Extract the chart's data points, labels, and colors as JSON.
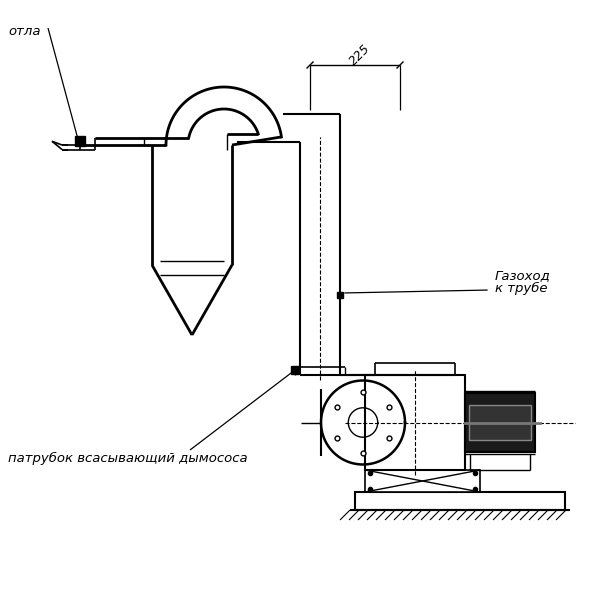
{
  "bg_color": "#ffffff",
  "line_color": "#000000",
  "thick_lw": 2.0,
  "thin_lw": 1.0,
  "label_котла": "отла",
  "label_газоход1": "Газоход",
  "label_газоход2": "к трубе",
  "label_патрубок": "патрубок всасывающий дымососа",
  "dim_225": "225",
  "font_size_label": 9.5,
  "font_size_dim": 9
}
